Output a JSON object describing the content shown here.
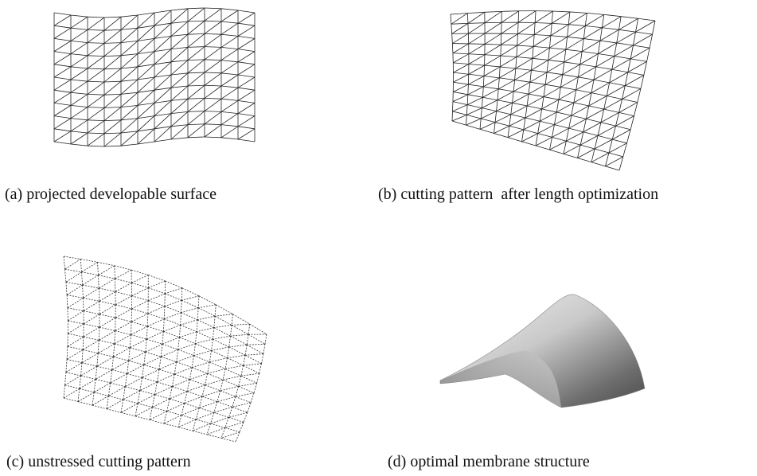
{
  "panels": [
    {
      "caption": "(a) projected developable surface"
    },
    {
      "caption": "(b) cutting pattern  after length optimization"
    },
    {
      "caption": "(c) unstressed cutting pattern"
    },
    {
      "caption": "(d) optimal membrane structure"
    }
  ]
}
